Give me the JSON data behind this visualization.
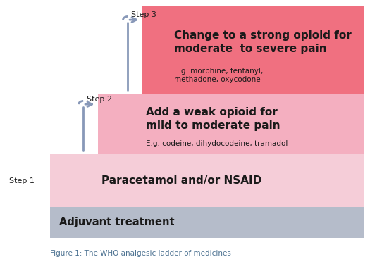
{
  "title": "Figure 1: The WHO analgesic ladder of medicines",
  "background": "#ffffff",
  "arrow_color": "#8898b8",
  "dark_text": "#1a1a1a",
  "caption_color": "#4a7090",
  "adjuvant_color": "#b5bcca",
  "step1_color": "#f5cdd8",
  "step2_color": "#f4afc0",
  "step3_color": "#f07080",
  "adjuvant_label": "Adjuvant treatment",
  "step1_label": "Step 1",
  "step1_main": "Paracetamol and/or NSAID",
  "step1_sub": "",
  "step2_label": "Step 2",
  "step2_main": "Add a weak opioid for\nmild to moderate pain",
  "step2_sub": "E.g. codeine, dihydocodeine, tramadol",
  "step3_label": "Step 3",
  "step3_main": "Change to a strong opioid for\nmoderate  to severe pain",
  "step3_sub": "E.g. morphine, fentanyl,\nmethadone, oxycodone",
  "caption": "Figure 1: The WHO analgesic ladder of medicines"
}
